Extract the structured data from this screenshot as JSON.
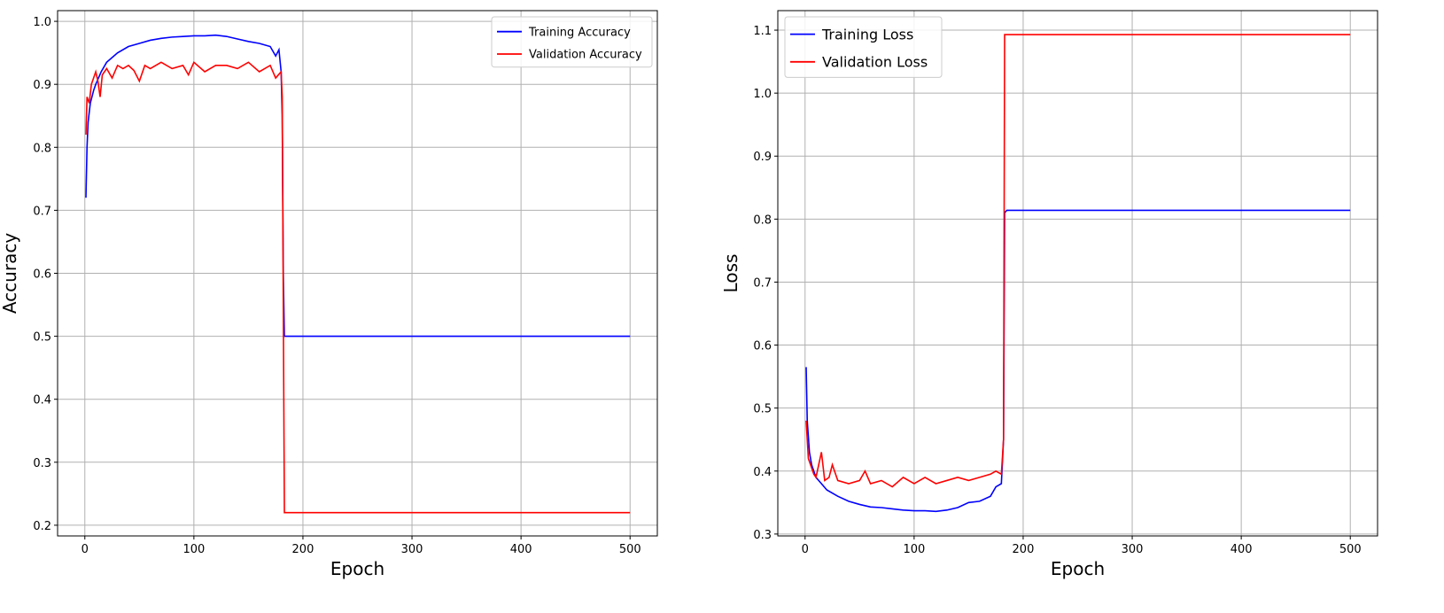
{
  "chart_data": [
    {
      "type": "line",
      "xlabel": "Epoch",
      "ylabel": "Accuracy",
      "xlim": [
        -25,
        525
      ],
      "ylim": [
        0.183,
        1.017
      ],
      "xticks": [
        0,
        100,
        200,
        300,
        400,
        500
      ],
      "yticks": [
        0.2,
        0.3,
        0.4,
        0.5,
        0.6,
        0.7,
        0.8,
        0.9,
        {
          "value": 1,
          "label": "1.0"
        }
      ],
      "grid": true,
      "legend": "upper-right",
      "series": [
        {
          "name": "Training Accuracy",
          "color": "#0000ff",
          "x": [
            1,
            2,
            3,
            5,
            8,
            10,
            15,
            20,
            30,
            40,
            50,
            60,
            70,
            80,
            90,
            100,
            110,
            120,
            130,
            140,
            150,
            160,
            170,
            175,
            178,
            180,
            181,
            182,
            183,
            185,
            200,
            300,
            400,
            500
          ],
          "values": [
            0.72,
            0.8,
            0.84,
            0.87,
            0.89,
            0.9,
            0.92,
            0.935,
            0.95,
            0.96,
            0.965,
            0.97,
            0.973,
            0.975,
            0.976,
            0.977,
            0.977,
            0.978,
            0.976,
            0.972,
            0.968,
            0.965,
            0.96,
            0.945,
            0.955,
            0.92,
            0.85,
            0.6,
            0.5,
            0.5,
            0.5,
            0.5,
            0.5,
            0.5
          ]
        },
        {
          "name": "Validation Accuracy",
          "color": "#ff0000",
          "x": [
            1,
            2,
            4,
            6,
            8,
            10,
            12,
            14,
            16,
            20,
            25,
            30,
            35,
            40,
            45,
            50,
            55,
            60,
            70,
            80,
            90,
            95,
            100,
            110,
            120,
            130,
            140,
            150,
            160,
            170,
            175,
            180,
            181,
            183,
            200,
            300,
            400,
            500
          ],
          "values": [
            0.82,
            0.88,
            0.87,
            0.9,
            0.91,
            0.92,
            0.905,
            0.88,
            0.915,
            0.925,
            0.91,
            0.93,
            0.925,
            0.93,
            0.922,
            0.905,
            0.93,
            0.925,
            0.935,
            0.925,
            0.93,
            0.915,
            0.935,
            0.92,
            0.93,
            0.93,
            0.925,
            0.935,
            0.92,
            0.93,
            0.91,
            0.92,
            0.88,
            0.22,
            0.22,
            0.22,
            0.22,
            0.22
          ]
        }
      ]
    },
    {
      "type": "line",
      "xlabel": "Epoch",
      "ylabel": "Loss",
      "xlim": [
        -25,
        525
      ],
      "ylim": [
        0.297,
        1.131
      ],
      "xticks": [
        0,
        100,
        200,
        300,
        400,
        500
      ],
      "yticks": [
        0.3,
        0.4,
        0.5,
        0.6,
        0.7,
        0.8,
        0.9,
        {
          "value": 1,
          "label": "1.0"
        },
        1.1
      ],
      "grid": true,
      "legend": "upper-left",
      "series": [
        {
          "name": "Training Loss",
          "color": "#0000ff",
          "x": [
            1,
            2,
            4,
            6,
            10,
            15,
            20,
            30,
            40,
            50,
            60,
            70,
            80,
            90,
            100,
            110,
            120,
            130,
            140,
            150,
            160,
            170,
            175,
            180,
            182,
            183,
            185,
            200,
            300,
            400,
            500
          ],
          "values": [
            0.565,
            0.48,
            0.43,
            0.41,
            0.39,
            0.38,
            0.37,
            0.36,
            0.352,
            0.347,
            0.343,
            0.342,
            0.34,
            0.338,
            0.337,
            0.337,
            0.336,
            0.338,
            0.342,
            0.35,
            0.352,
            0.36,
            0.375,
            0.38,
            0.45,
            0.81,
            0.814,
            0.814,
            0.814,
            0.814,
            0.814
          ]
        },
        {
          "name": "Validation Loss",
          "color": "#ff0000",
          "x": [
            1,
            3,
            5,
            8,
            10,
            15,
            18,
            22,
            25,
            30,
            40,
            50,
            55,
            60,
            70,
            80,
            90,
            100,
            110,
            120,
            130,
            140,
            150,
            160,
            170,
            175,
            180,
            182,
            183,
            200,
            300,
            400,
            500
          ],
          "values": [
            0.48,
            0.42,
            0.41,
            0.395,
            0.39,
            0.43,
            0.385,
            0.39,
            0.41,
            0.385,
            0.38,
            0.385,
            0.4,
            0.38,
            0.385,
            0.375,
            0.39,
            0.38,
            0.39,
            0.38,
            0.385,
            0.39,
            0.385,
            0.39,
            0.395,
            0.4,
            0.395,
            0.45,
            1.093,
            1.093,
            1.093,
            1.093,
            1.093
          ]
        }
      ]
    }
  ]
}
